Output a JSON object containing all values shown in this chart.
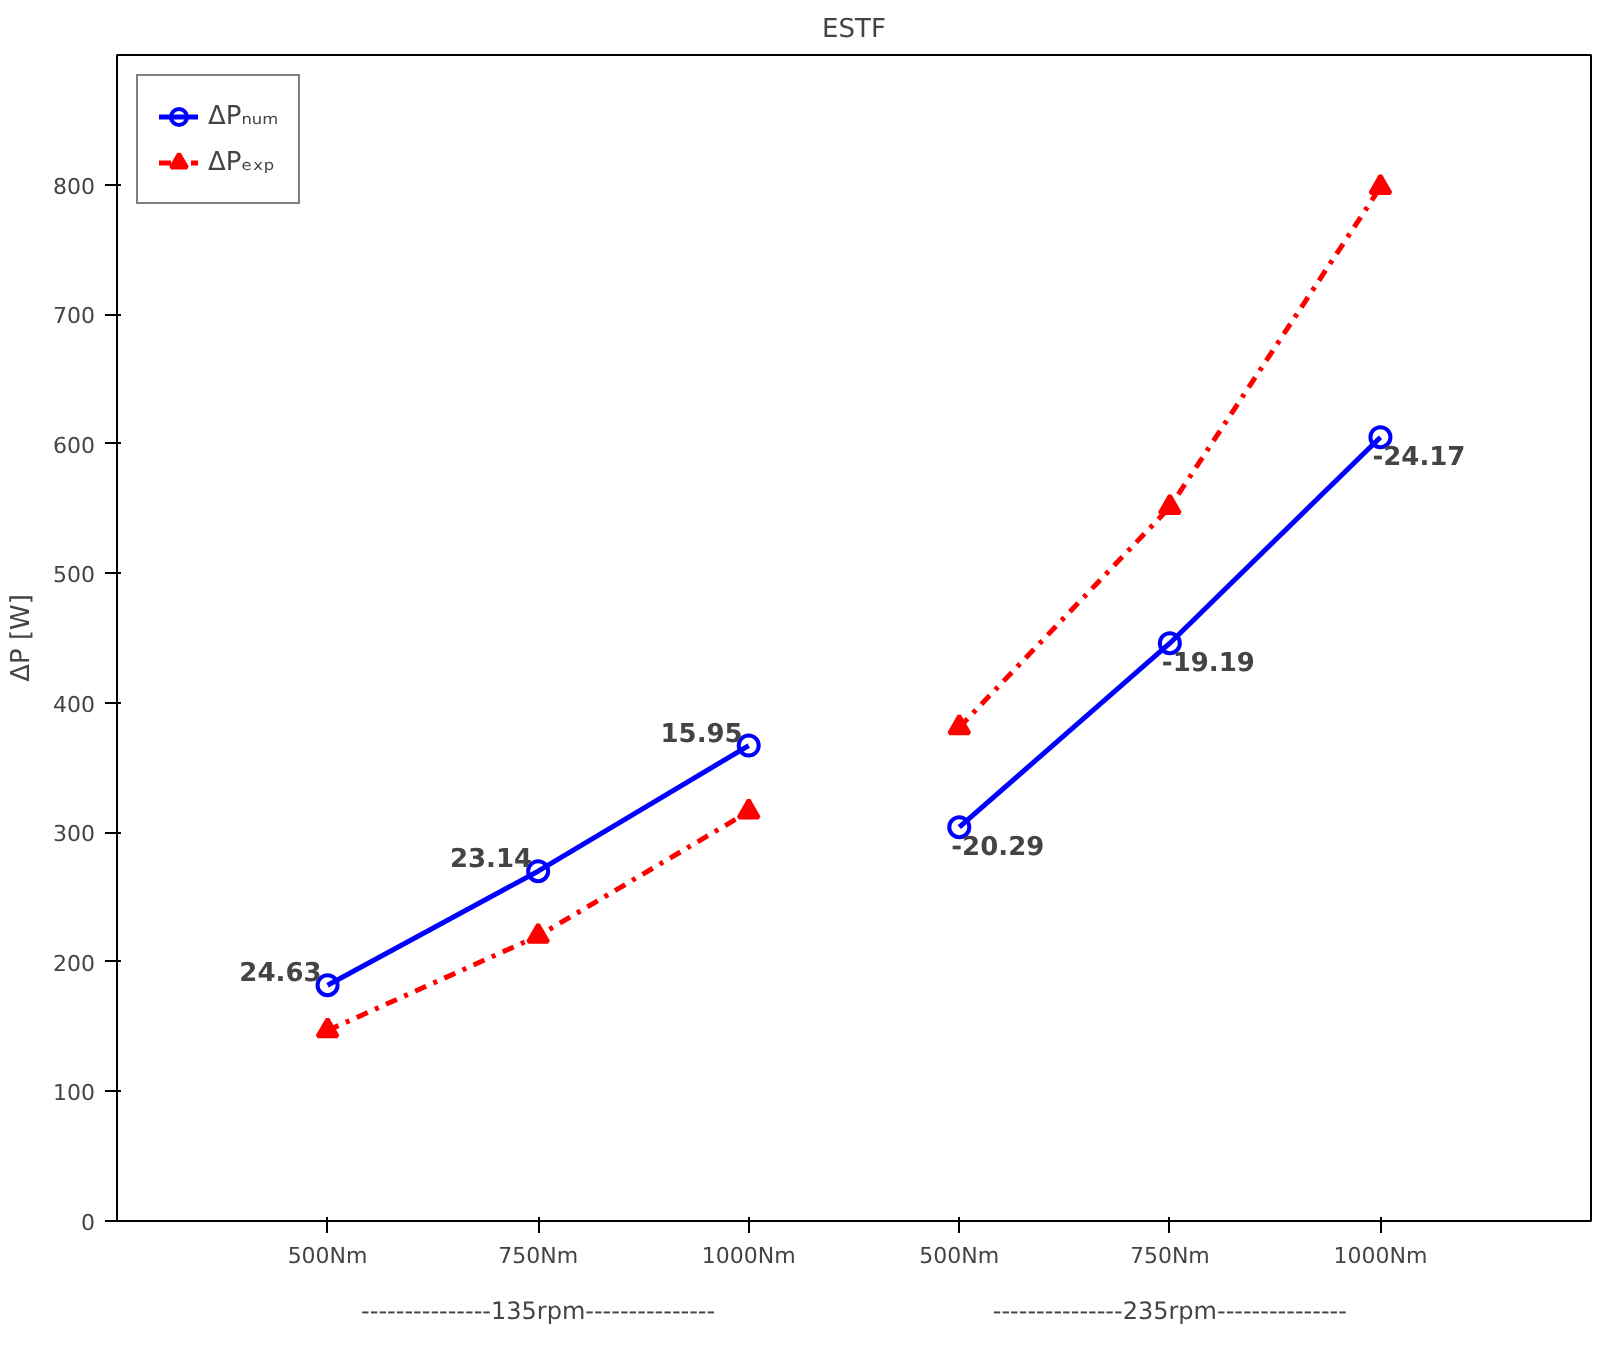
{
  "chart_data": {
    "type": "line",
    "title": "ESTF",
    "ylabel": "ΔP [W]",
    "categories": [
      "500Nm",
      "750Nm",
      "1000Nm",
      "500Nm",
      "750Nm",
      "1000Nm"
    ],
    "series": [
      {
        "name": "ΔPₙᵤₘ",
        "color": "#0000ff",
        "marker": "circle",
        "line_style": "solid",
        "values": [
          182,
          270,
          367,
          null,
          null,
          null
        ]
      },
      {
        "name": "ΔPₑₓₚ",
        "color": "#ff0000",
        "marker": "triangle",
        "line_style": "dashdot",
        "values": [
          147,
          220,
          316,
          null,
          null,
          null
        ]
      },
      {
        "color": "#0000ff",
        "marker": "circle",
        "line_style": "solid",
        "values": [
          null,
          null,
          null,
          304,
          446,
          605
        ]
      },
      {
        "color": "#ff0000",
        "marker": "triangle",
        "line_style": "dashdot",
        "values": [
          null,
          null,
          null,
          381,
          551,
          798
        ]
      }
    ],
    "ylim": [
      0,
      900
    ],
    "yticks": [
      0,
      100,
      200,
      300,
      400,
      500,
      600,
      700,
      800
    ],
    "legend": "top left",
    "annotations": [
      "---------------135rpm---------------",
      "---------------235rpm---------------",
      {
        "text": "24.63",
        "x": "500Nm",
        "y": 182
      },
      {
        "text": "23.14",
        "x": "750Nm",
        "y": 270
      },
      {
        "text": "15.95",
        "x": "1000Nm",
        "y": 367
      },
      "-20.29",
      "-19.19",
      "-24.17"
    ]
  }
}
